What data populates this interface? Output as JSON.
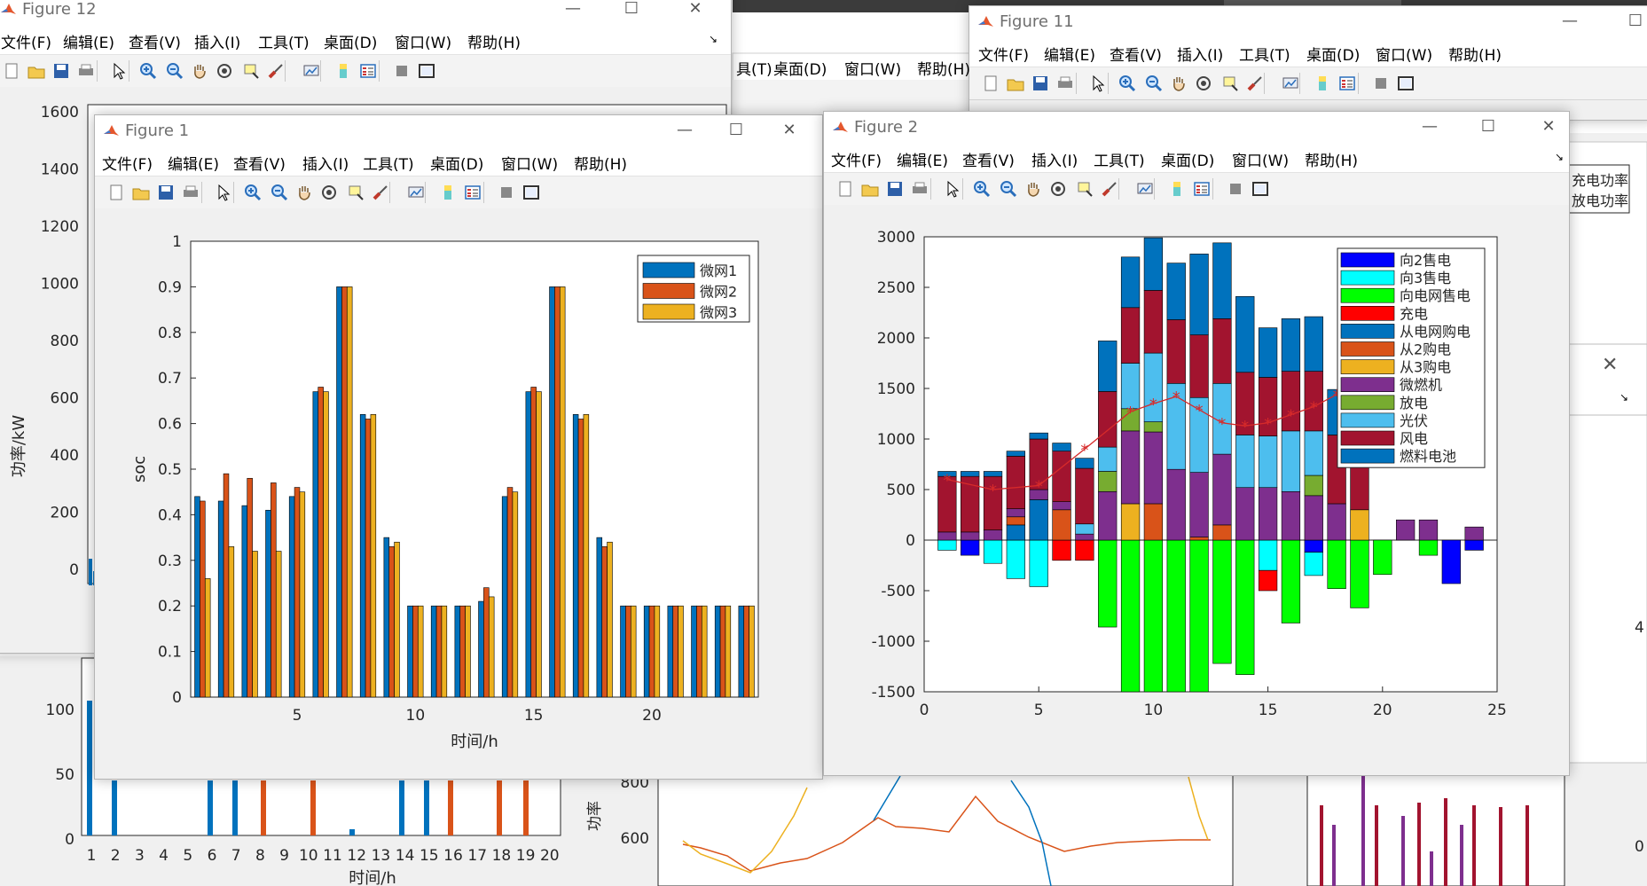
{
  "menus": {
    "items": [
      "文件(F)",
      "编辑(E)",
      "查看(V)",
      "插入(I)",
      "工具(T)",
      "桌面(D)",
      "窗口(W)",
      "帮助(H)"
    ],
    "bg_partial": [
      "具(T)",
      "桌面(D)",
      "窗口(W)",
      "帮助(H)"
    ]
  },
  "windows": {
    "fig12": {
      "title": "Figure 12"
    },
    "fig11": {
      "title": "Figure 11"
    },
    "fig1": {
      "title": "Figure 1"
    },
    "fig2": {
      "title": "Figure 2"
    }
  },
  "toolbar_icons": [
    "new-file-icon",
    "open-folder-icon",
    "save-icon",
    "print-icon",
    "pointer-icon",
    "zoom-in-icon",
    "zoom-out-icon",
    "pan-hand-icon",
    "rotate-icon",
    "data-cursor-icon",
    "brush-icon",
    "link-plot-icon",
    "colorbar-icon",
    "legend-icon",
    "hide-plot-tools-icon",
    "show-plot-tools-icon"
  ],
  "background": {
    "fig12_yticks": [
      "1600",
      "1400",
      "1200",
      "1000",
      "800",
      "600",
      "400",
      "200",
      "0"
    ],
    "fig12_ylabel": "功率/kW",
    "lower_yticks": [
      "100",
      "50",
      "0"
    ],
    "lower_xticks": [
      "1",
      "2",
      "3",
      "4",
      "5",
      "6",
      "7",
      "8",
      "9",
      "10",
      "11",
      "12",
      "13",
      "14",
      "15",
      "16",
      "17",
      "18",
      "19",
      "20"
    ],
    "lower_xlabel": "时间/h",
    "line_yticks": [
      "800",
      "600"
    ],
    "line_ylabel": "功率",
    "fig11_legend": [
      "充电功率",
      "放电功率"
    ],
    "right_tick": "4",
    "right_tick2": "0"
  },
  "chart_data": [
    {
      "type": "bar",
      "window": "Figure 1",
      "xlabel": "时间/h",
      "ylabel": "soc",
      "ylim": [
        0,
        1
      ],
      "yticks": [
        "0",
        "0.1",
        "0.2",
        "0.3",
        "0.4",
        "0.5",
        "0.6",
        "0.7",
        "0.8",
        "0.9",
        "1"
      ],
      "xticks": [
        "5",
        "10",
        "15",
        "20"
      ],
      "legend_position": "top-right",
      "categories": [
        1,
        2,
        3,
        4,
        5,
        6,
        7,
        8,
        9,
        10,
        11,
        12,
        13,
        14,
        15,
        16,
        17,
        18,
        19,
        20,
        21,
        22,
        23,
        24
      ],
      "series": [
        {
          "name": "微网1",
          "color": "#0072BD",
          "values": [
            0.44,
            0.43,
            0.42,
            0.41,
            0.44,
            0.67,
            0.9,
            0.62,
            0.35,
            0.2,
            0.2,
            0.2,
            0.21,
            0.44,
            0.67,
            0.9,
            0.62,
            0.35,
            0.2,
            0.2,
            0.2,
            0.2,
            0.2,
            0.2
          ]
        },
        {
          "name": "微网2",
          "color": "#D95319",
          "values": [
            0.43,
            0.49,
            0.48,
            0.47,
            0.46,
            0.68,
            0.9,
            0.61,
            0.33,
            0.2,
            0.2,
            0.2,
            0.24,
            0.46,
            0.68,
            0.9,
            0.61,
            0.33,
            0.2,
            0.2,
            0.2,
            0.2,
            0.2,
            0.2
          ]
        },
        {
          "name": "微网3",
          "color": "#EDB120",
          "values": [
            0.26,
            0.33,
            0.32,
            0.32,
            0.45,
            0.67,
            0.9,
            0.62,
            0.34,
            0.2,
            0.2,
            0.2,
            0.22,
            0.45,
            0.67,
            0.9,
            0.62,
            0.34,
            0.2,
            0.2,
            0.2,
            0.2,
            0.2,
            0.2
          ]
        }
      ]
    },
    {
      "type": "bar",
      "stacked": true,
      "window": "Figure 2",
      "ylim": [
        -1500,
        3000
      ],
      "xlim": [
        0,
        25
      ],
      "yticks": [
        "-1500",
        "-1000",
        "-500",
        "0",
        "500",
        "1000",
        "1500",
        "2000",
        "2500",
        "3000"
      ],
      "xticks": [
        "0",
        "5",
        "10",
        "15",
        "20",
        "25"
      ],
      "legend_position": "top-right",
      "categories": [
        1,
        2,
        3,
        4,
        5,
        6,
        7,
        8,
        9,
        10,
        11,
        12,
        13,
        14,
        15,
        16,
        17,
        18,
        19,
        20,
        21,
        22,
        23,
        24
      ],
      "series": [
        {
          "name": "向2售电",
          "color": "#0000FF",
          "values": [
            0,
            -150,
            0,
            0,
            0,
            0,
            0,
            0,
            0,
            0,
            0,
            0,
            0,
            0,
            0,
            0,
            -120,
            0,
            0,
            0,
            0,
            0,
            -430,
            -100
          ]
        },
        {
          "name": "向3售电",
          "color": "#00FFFF",
          "values": [
            -100,
            0,
            -230,
            -380,
            -460,
            0,
            0,
            0,
            0,
            0,
            0,
            0,
            0,
            0,
            -300,
            0,
            -230,
            0,
            0,
            0,
            0,
            0,
            0,
            0
          ]
        },
        {
          "name": "向电网售电",
          "color": "#00FF00",
          "values": [
            0,
            0,
            0,
            0,
            0,
            0,
            0,
            -860,
            -1600,
            -1600,
            -1600,
            -1600,
            -1220,
            -1330,
            0,
            -820,
            0,
            -480,
            -670,
            -340,
            0,
            -150,
            0,
            0
          ]
        },
        {
          "name": "充电",
          "color": "#FF0000",
          "values": [
            0,
            0,
            0,
            0,
            0,
            -200,
            -200,
            0,
            0,
            0,
            0,
            0,
            0,
            0,
            -200,
            0,
            0,
            0,
            0,
            0,
            0,
            0,
            0,
            0
          ]
        },
        {
          "name": "从电网购电",
          "color": "#0072BD",
          "values": [
            0,
            0,
            0,
            150,
            400,
            0,
            0,
            0,
            0,
            0,
            0,
            0,
            0,
            0,
            0,
            0,
            0,
            0,
            0,
            0,
            0,
            0,
            0,
            0
          ]
        },
        {
          "name": "从2购电",
          "color": "#D95319",
          "values": [
            0,
            0,
            0,
            80,
            0,
            300,
            0,
            0,
            0,
            360,
            0,
            30,
            150,
            0,
            0,
            0,
            0,
            0,
            0,
            0,
            0,
            0,
            0,
            0
          ]
        },
        {
          "name": "从3购电",
          "color": "#EDB120",
          "values": [
            0,
            0,
            0,
            0,
            0,
            0,
            0,
            0,
            360,
            0,
            0,
            0,
            0,
            0,
            0,
            0,
            0,
            0,
            300,
            0,
            0,
            0,
            0,
            0
          ]
        },
        {
          "name": "微燃机",
          "color": "#7E2F8E",
          "values": [
            80,
            80,
            100,
            80,
            100,
            80,
            60,
            480,
            720,
            710,
            700,
            640,
            700,
            520,
            520,
            480,
            440,
            360,
            0,
            0,
            200,
            200,
            0,
            130
          ]
        },
        {
          "name": "放电",
          "color": "#77AC30",
          "values": [
            0,
            0,
            0,
            0,
            0,
            0,
            0,
            200,
            220,
            100,
            0,
            0,
            0,
            0,
            0,
            0,
            200,
            0,
            0,
            0,
            0,
            0,
            0,
            0
          ]
        },
        {
          "name": "光伏",
          "color": "#4DBEEE",
          "values": [
            0,
            0,
            0,
            0,
            0,
            0,
            100,
            240,
            450,
            680,
            850,
            740,
            700,
            520,
            510,
            600,
            440,
            0,
            0,
            0,
            0,
            0,
            0,
            0
          ]
        },
        {
          "name": "风电",
          "color": "#A2142F",
          "values": [
            550,
            550,
            530,
            520,
            500,
            500,
            550,
            550,
            550,
            620,
            630,
            620,
            640,
            620,
            580,
            590,
            590,
            680,
            700,
            0,
            0,
            0,
            0,
            0
          ]
        },
        {
          "name": "燃料电池",
          "color": "#0072BD",
          "values": [
            50,
            50,
            50,
            50,
            60,
            80,
            100,
            500,
            500,
            520,
            560,
            800,
            750,
            750,
            490,
            520,
            540,
            450,
            0,
            0,
            0,
            0,
            0,
            0
          ]
        }
      ],
      "line": {
        "color": "#d62a2a",
        "marker": "*",
        "x": [
          1,
          3,
          5,
          7,
          9,
          10,
          11,
          12,
          13,
          14,
          15,
          16,
          17,
          18
        ],
        "values": [
          600,
          500,
          540,
          900,
          1270,
          1350,
          1420,
          1290,
          1160,
          1130,
          1160,
          1240,
          1320,
          1440
        ]
      }
    }
  ]
}
